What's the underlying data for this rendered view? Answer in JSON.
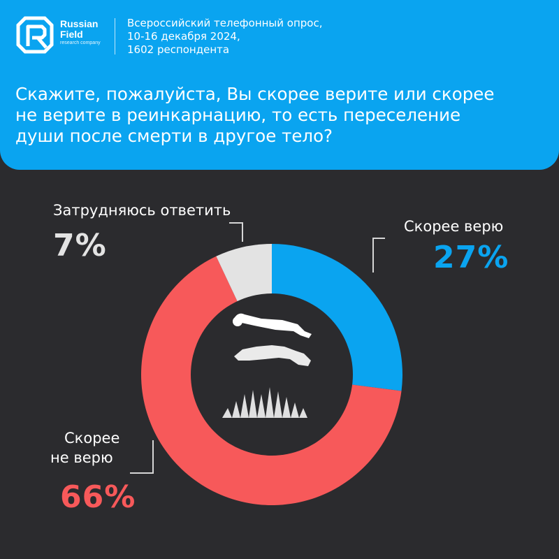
{
  "brand": {
    "name_line1": "Russian",
    "name_line2": "Field",
    "tagline": "research company"
  },
  "survey": {
    "line1": "Всероссийский телефонный опрос,",
    "line2": "10-16 декабря 2024,",
    "line3": "1602 респондента"
  },
  "question": "Скажите, пожалуйста, Вы скорее  верите или скорее\nне верите в  реинкарнацию, то есть переселение\nдуши после смерти в другое тело?",
  "colors": {
    "header": "#0aa4f0",
    "background": "#2b2b2e",
    "believe": "#0aa4f0",
    "not_believe": "#f7595a",
    "dont_know": "#e3e3e3"
  },
  "icons": {
    "logo": "rf-logo-icon",
    "center": "reincarnation-silhouette-icon"
  },
  "chart_data": {
    "type": "pie",
    "donut": true,
    "categories": [
      "Скорее верю",
      "Скорее не верю",
      "Затрудняюсь ответить"
    ],
    "values": [
      27,
      66,
      7
    ],
    "value_labels": [
      "27%",
      "66%",
      "7%"
    ],
    "start": "top, clockwise",
    "legend": "none"
  },
  "labels": {
    "believe": {
      "text": "Скорее верю",
      "pct": "27%"
    },
    "not_believe": {
      "line1": "Скорее",
      "line2": "не верю",
      "pct": "66%"
    },
    "dont_know": {
      "text": "Затрудняюсь ответить",
      "pct": "7%"
    }
  }
}
